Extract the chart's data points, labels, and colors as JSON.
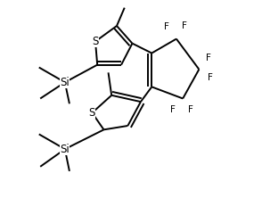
{
  "bg_color": "#ffffff",
  "line_color": "#000000",
  "line_width": 1.4,
  "fig_width": 2.94,
  "fig_height": 2.5,
  "dpi": 100,
  "xlim": [
    0.0,
    3.2
  ],
  "ylim": [
    0.2,
    3.6
  ]
}
